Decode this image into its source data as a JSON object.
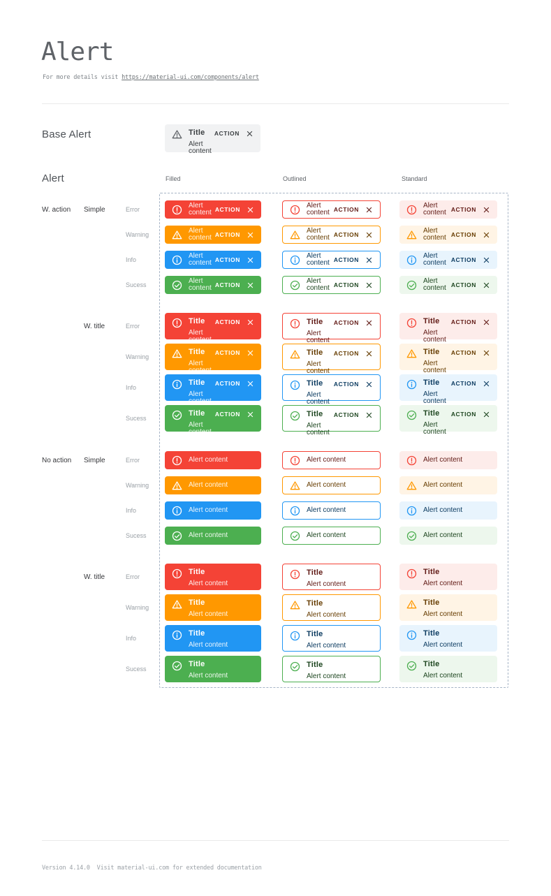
{
  "page": {
    "title": "Alert",
    "subtitle_prefix": "For more details visit ",
    "subtitle_link": "https://material-ui.com/components/alert",
    "footer": "Version 4.14.0  Visit material-ui.com for extended documentation"
  },
  "base_alert": {
    "label": "Base Alert",
    "title": "Title",
    "content": "Alert content",
    "action_label": "ACTION",
    "icon": "warning-triangle-icon",
    "colors": {
      "background": "#f1f2f3",
      "text": "#3c4043",
      "icon": "#5f6368"
    }
  },
  "grid": {
    "section_label": "Alert",
    "columns": [
      "Filled",
      "Outlined",
      "Standard"
    ],
    "alert": {
      "title": "Title",
      "content": "Alert content",
      "action_label": "ACTION"
    },
    "frame_color": "#a6b4c6",
    "severities": {
      "error": {
        "label": "Error",
        "icon": "error-circle-icon",
        "main": "#f44336",
        "standard_bg": "#fdecea",
        "dark_text": "#611a15"
      },
      "warning": {
        "label": "Warning",
        "icon": "warning-triangle-icon",
        "main": "#ff9800",
        "standard_bg": "#fff4e5",
        "dark_text": "#663c00"
      },
      "info": {
        "label": "Info",
        "icon": "info-circle-icon",
        "main": "#2196f3",
        "standard_bg": "#e8f4fd",
        "dark_text": "#0d3c61"
      },
      "success": {
        "label": "Sucess",
        "icon": "success-circle-icon",
        "main": "#4caf50",
        "standard_bg": "#edf7ed",
        "dark_text": "#1e4620"
      }
    },
    "groups": [
      {
        "action_label": "W. action",
        "style_label": "Simple",
        "titled": false,
        "with_action": true,
        "rows": [
          {
            "severity": "error",
            "label": "Error"
          },
          {
            "severity": "warning",
            "label": "Warning"
          },
          {
            "severity": "info",
            "label": "Info"
          },
          {
            "severity": "success",
            "label": "Sucess"
          }
        ]
      },
      {
        "action_label": "",
        "style_label": "W. title",
        "titled": true,
        "with_action": true,
        "rows": [
          {
            "severity": "error",
            "label": "Error"
          },
          {
            "severity": "warning",
            "label": "Warning"
          },
          {
            "severity": "info",
            "label": "Info"
          },
          {
            "severity": "success",
            "label": "Sucess"
          }
        ]
      },
      {
        "action_label": "No action",
        "style_label": "Simple",
        "titled": false,
        "with_action": false,
        "rows": [
          {
            "severity": "error",
            "label": "Error"
          },
          {
            "severity": "warning",
            "label": "Warning"
          },
          {
            "severity": "info",
            "label": "Info"
          },
          {
            "severity": "success",
            "label": "Sucess"
          }
        ]
      },
      {
        "action_label": "",
        "style_label": "W. title",
        "titled": true,
        "with_action": false,
        "rows": [
          {
            "severity": "error",
            "label": "Error"
          },
          {
            "severity": "warning",
            "label": "Warning"
          },
          {
            "severity": "info",
            "label": "Info"
          },
          {
            "severity": "success",
            "label": "Sucess"
          }
        ]
      }
    ]
  }
}
